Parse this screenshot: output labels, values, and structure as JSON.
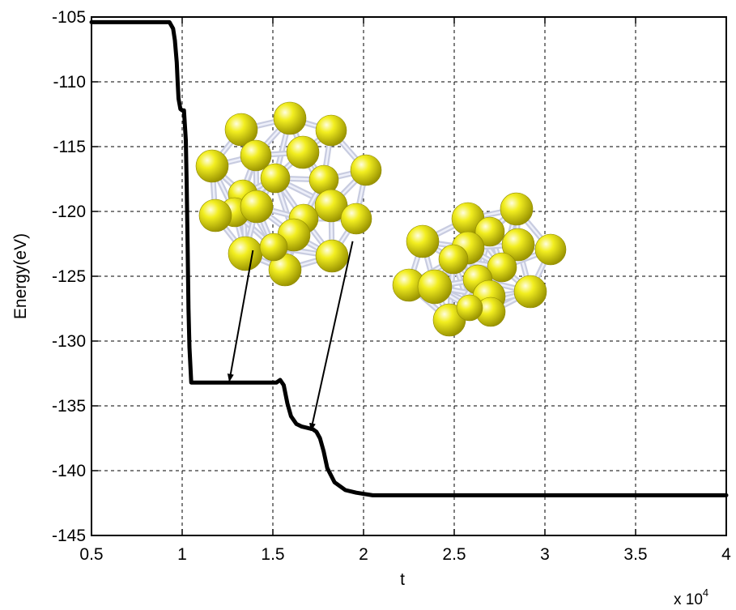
{
  "chart_data": {
    "type": "line",
    "xlabel": "t",
    "ylabel": "Energy(eV)",
    "x_multiplier": "x 10",
    "x_multiplier_exp": "4",
    "xlim": [
      0.5,
      4
    ],
    "ylim": [
      -145,
      -105
    ],
    "xticks": [
      0.5,
      1,
      1.5,
      2,
      2.5,
      3,
      3.5,
      4
    ],
    "xtick_labels": [
      "0.5",
      "1",
      "1.5",
      "2",
      "2.5",
      "3",
      "3.5",
      "4"
    ],
    "yticks": [
      -105,
      -110,
      -115,
      -120,
      -125,
      -130,
      -135,
      -140,
      -145
    ],
    "ytick_labels": [
      "-105",
      "-110",
      "-115",
      "-120",
      "-125",
      "-130",
      "-135",
      "-140",
      "-145"
    ],
    "grid": true,
    "series": [
      {
        "color": "#000000",
        "x": [
          0.5,
          0.93,
          0.95,
          0.96,
          0.97,
          0.975,
          0.98,
          0.99,
          1.0,
          1.01,
          1.02,
          1.025,
          1.03,
          1.035,
          1.04,
          1.05,
          1.52,
          1.54,
          1.56,
          1.58,
          1.6,
          1.63,
          1.66,
          1.69,
          1.72,
          1.74,
          1.76,
          1.78,
          1.8,
          1.84,
          1.9,
          1.96,
          2.05,
          2.2,
          4.0
        ],
        "y": [
          -105.4,
          -105.4,
          -105.9,
          -106.8,
          -108.5,
          -110.0,
          -111.3,
          -112.1,
          -112.2,
          -112.2,
          -114.5,
          -118.0,
          -122.5,
          -127.5,
          -130.5,
          -133.2,
          -133.2,
          -133.0,
          -133.4,
          -134.8,
          -135.8,
          -136.4,
          -136.6,
          -136.7,
          -136.8,
          -137.0,
          -137.5,
          -138.5,
          -139.8,
          -140.9,
          -141.5,
          -141.7,
          -141.9,
          -141.9,
          -141.9
        ]
      }
    ],
    "annotations": [
      {
        "from": [
          1.39,
          -123.0
        ],
        "to": [
          1.26,
          -133.1
        ]
      },
      {
        "from": [
          1.94,
          -122.3
        ],
        "to": [
          1.71,
          -136.9
        ]
      }
    ]
  },
  "illustrations": {
    "cluster_1_icon": "gold-nanocluster-hollow-cage",
    "cluster_2_icon": "gold-nanocluster-compact",
    "atom_color": "#e5e000",
    "bond_color": "#c8cce0"
  }
}
